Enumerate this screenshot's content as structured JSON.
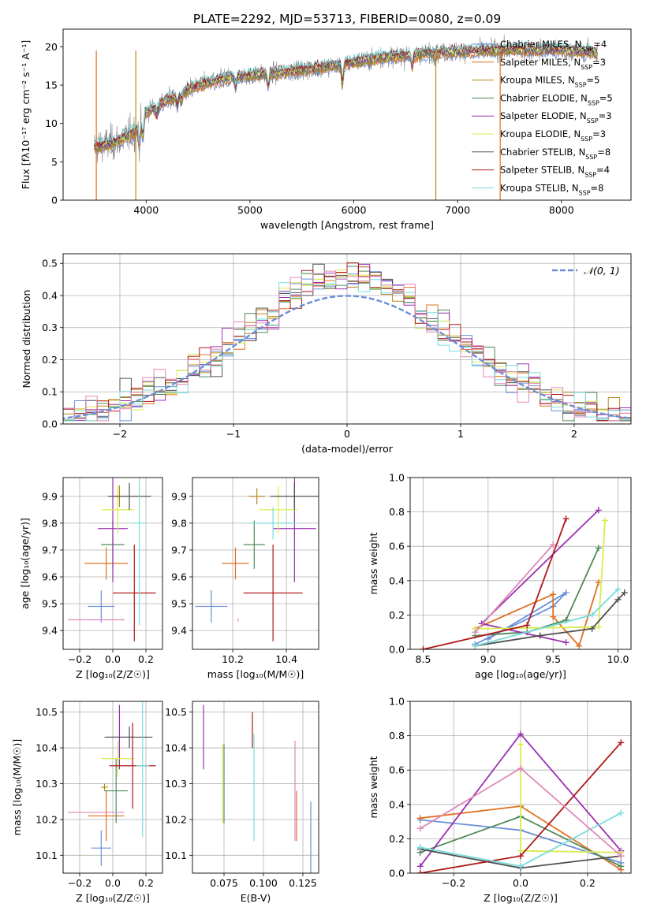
{
  "figure_title": "PLATE=2292, MJD=53713, FIBERID=0080, z=0.09",
  "colors": {
    "chabrier_miles": "#6a8fd8",
    "salpeter_miles": "#e07020",
    "kroupa_miles": "#b48a1e",
    "chabrier_elodie": "#4e8a5a",
    "salpeter_elodie": "#9a30b0",
    "kroupa_elodie": "#d8ec50",
    "chabrier_stelib": "#505050",
    "salpeter_stelib": "#b01818",
    "kroupa_stelib": "#78dcdc",
    "pink": "#e088b8",
    "normal_line": "#6a8fd8",
    "spectrum": "#808080"
  },
  "chart_data": [
    {
      "type": "line",
      "id": "spectrum",
      "xlabel": "wavelength [Angstrom, rest frame]",
      "ylabel": "Flux [fλ10⁻¹⁷ erg cm⁻² s⁻¹ A⁻¹]",
      "xlim": [
        3200,
        8670
      ],
      "ylim": [
        0,
        22.3
      ],
      "xticks": [
        4000,
        5000,
        6000,
        7000,
        8000
      ],
      "yticks": [
        0,
        5,
        10,
        15,
        20
      ],
      "legend_position": "top-right",
      "legend": [
        {
          "name": "Chabrier MILES, N_SSP=4",
          "base": "Chabrier MILES, N",
          "sub": "SSP",
          "tail": "=4",
          "color": "#6a8fd8"
        },
        {
          "name": "Salpeter MILES, N_SSP=3",
          "base": "Salpeter MILES, N",
          "sub": "SSP",
          "tail": "=3",
          "color": "#e07020"
        },
        {
          "name": "Kroupa MILES, N_SSP=5",
          "base": "Kroupa MILES, N",
          "sub": "SSP",
          "tail": "=5",
          "color": "#b48a1e"
        },
        {
          "name": "Chabrier ELODIE, N_SSP=5",
          "base": "Chabrier ELODIE, N",
          "sub": "SSP",
          "tail": "=5",
          "color": "#4e8a5a"
        },
        {
          "name": "Salpeter ELODIE, N_SSP=3",
          "base": "Salpeter ELODIE, N",
          "sub": "SSP",
          "tail": "=3",
          "color": "#9a30b0"
        },
        {
          "name": "Kroupa ELODIE, N_SSP=3",
          "base": "Kroupa ELODIE, N",
          "sub": "SSP",
          "tail": "=3",
          "color": "#d8ec50"
        },
        {
          "name": "Chabrier STELIB, N_SSP=8",
          "base": "Chabrier STELIB, N",
          "sub": "SSP",
          "tail": "=8",
          "color": "#505050"
        },
        {
          "name": "Salpeter STELIB, N_SSP=4",
          "base": "Salpeter STELIB, N",
          "sub": "SSP",
          "tail": "=4",
          "color": "#b01818"
        },
        {
          "name": "Kroupa STELIB, N_SSP=8",
          "base": "Kroupa STELIB, N",
          "sub": "SSP",
          "tail": "=8",
          "color": "#78dcdc"
        }
      ],
      "continuum_knots": [
        [
          3500,
          7.0
        ],
        [
          3700,
          7.5
        ],
        [
          3900,
          9.0
        ],
        [
          4000,
          11.5
        ],
        [
          4200,
          13.0
        ],
        [
          4500,
          15.0
        ],
        [
          4800,
          16.0
        ],
        [
          5200,
          16.5
        ],
        [
          5800,
          17.5
        ],
        [
          6200,
          18.5
        ],
        [
          6600,
          19.0
        ],
        [
          7000,
          19.4
        ],
        [
          7500,
          19.6
        ],
        [
          8000,
          19.6
        ],
        [
          8400,
          19.2
        ]
      ],
      "absorption_lines": [
        [
          3934,
          2.5
        ],
        [
          3968,
          2.5
        ],
        [
          4102,
          1.2
        ],
        [
          4300,
          1.5
        ],
        [
          4340,
          1.2
        ],
        [
          4861,
          1.2
        ],
        [
          5175,
          1.5
        ],
        [
          5890,
          2.5
        ],
        [
          6563,
          1.5
        ]
      ],
      "vertical_spikes": [
        {
          "x": 3520,
          "color": "#e07020"
        },
        {
          "x": 3900,
          "color": "#b48a1e"
        },
        {
          "x": 6790,
          "color": "#b48a1e"
        },
        {
          "x": 7410,
          "color": "#e07020"
        }
      ]
    },
    {
      "type": "histogram",
      "id": "residuals",
      "xlabel": "(data-model)/error",
      "ylabel": "Normed distribution",
      "xlim": [
        -2.5,
        2.5
      ],
      "ylim": [
        0,
        0.53
      ],
      "xticks": [
        -2,
        -1,
        0,
        1,
        2
      ],
      "yticks": [
        0.0,
        0.1,
        0.2,
        0.3,
        0.4,
        0.5
      ],
      "bin_width": 0.1,
      "curve_label": "𝒩(0, 1)",
      "legend_position": "top-right"
    },
    {
      "type": "scatter",
      "id": "age_vs_Z",
      "xlabel": "Z [log₁₀(Z/Z☉)]",
      "ylabel": "age  [log₁₀(age/yr)]",
      "xlim": [
        -0.3,
        0.3
      ],
      "ylim": [
        9.33,
        9.97
      ],
      "xticks": [
        -0.2,
        0.0,
        0.2
      ],
      "yticks": [
        9.4,
        9.5,
        9.6,
        9.7,
        9.8,
        9.9
      ],
      "points": [
        {
          "x": -0.07,
          "y": 9.49,
          "xerr": 0.08,
          "yerr": 0.06,
          "color": "#6a8fd8"
        },
        {
          "x": -0.04,
          "y": 9.65,
          "xerr": 0.13,
          "yerr": 0.06,
          "color": "#e07020"
        },
        {
          "x": 0.04,
          "y": 9.9,
          "xerr": 0.03,
          "yerr": 0.04,
          "color": "#b48a1e"
        },
        {
          "x": 0.0,
          "y": 9.72,
          "xerr": 0.07,
          "yerr": 0.09,
          "color": "#4e8a5a"
        },
        {
          "x": 0.0,
          "y": 9.78,
          "xerr": 0.09,
          "yerr": 0.2,
          "color": "#9a30b0"
        },
        {
          "x": 0.03,
          "y": 9.85,
          "xerr": 0.1,
          "yerr": 0.09,
          "color": "#d8ec50"
        },
        {
          "x": 0.1,
          "y": 9.9,
          "xerr": 0.13,
          "yerr": 0.05,
          "color": "#505050"
        },
        {
          "x": 0.13,
          "y": 9.54,
          "xerr": 0.13,
          "yerr": 0.18,
          "color": "#b01818"
        },
        {
          "x": 0.16,
          "y": 9.8,
          "xerr": 0.04,
          "yerr": 0.38,
          "color": "#78dcdc"
        },
        {
          "x": -0.1,
          "y": 9.44,
          "xerr": 0.17,
          "yerr": 0.0,
          "color": "#e088b8"
        }
      ]
    },
    {
      "type": "scatter",
      "id": "age_vs_mass",
      "xlabel": "mass [log₁₀(M/M☉)]",
      "ylabel": "",
      "xlim": [
        10.05,
        10.52
      ],
      "ylim": [
        9.33,
        9.97
      ],
      "xticks": [
        10.2,
        10.4
      ],
      "yticks": [
        9.4,
        9.5,
        9.6,
        9.7,
        9.8,
        9.9
      ],
      "points": [
        {
          "x": 10.12,
          "y": 9.49,
          "xerr": 0.06,
          "yerr": 0.06,
          "color": "#6a8fd8"
        },
        {
          "x": 10.21,
          "y": 9.65,
          "xerr": 0.05,
          "yerr": 0.06,
          "color": "#e07020"
        },
        {
          "x": 10.29,
          "y": 9.9,
          "xerr": 0.03,
          "yerr": 0.03,
          "color": "#b48a1e"
        },
        {
          "x": 10.28,
          "y": 9.72,
          "xerr": 0.04,
          "yerr": 0.09,
          "color": "#4e8a5a"
        },
        {
          "x": 10.43,
          "y": 9.78,
          "xerr": 0.08,
          "yerr": 0.2,
          "color": "#9a30b0"
        },
        {
          "x": 10.37,
          "y": 9.85,
          "xerr": 0.07,
          "yerr": 0.09,
          "color": "#d8ec50"
        },
        {
          "x": 10.43,
          "y": 9.9,
          "xerr": 0.09,
          "yerr": 0.05,
          "color": "#505050"
        },
        {
          "x": 10.35,
          "y": 9.54,
          "xerr": 0.11,
          "yerr": 0.18,
          "color": "#b01818"
        },
        {
          "x": 10.35,
          "y": 9.8,
          "xerr": 0.09,
          "yerr": 0.06,
          "color": "#78dcdc"
        },
        {
          "x": 10.22,
          "y": 9.44,
          "xerr": 0.0,
          "yerr": 0.0,
          "color": "#e088b8"
        },
        {
          "x": 10.22,
          "y": 9.44,
          "xerr": 0.0,
          "yerr": 0.0,
          "color": "#e088b8"
        }
      ]
    },
    {
      "type": "line",
      "id": "massweight_vs_age",
      "xlabel": "age  [log₁₀(age/yr)]",
      "ylabel": "mass weight",
      "xlim": [
        8.4,
        10.1
      ],
      "ylim": [
        0,
        1
      ],
      "xticks": [
        8.5,
        9.0,
        9.5,
        10.0
      ],
      "yticks": [
        0.0,
        0.2,
        0.4,
        0.6,
        0.8,
        1.0
      ],
      "series": [
        {
          "color": "#6a8fd8",
          "points": [
            [
              8.9,
              0.03
            ],
            [
              9.5,
              0.25
            ],
            [
              9.6,
              0.33
            ],
            [
              9.0,
              0.06
            ]
          ]
        },
        {
          "color": "#e07020",
          "points": [
            [
              8.9,
              0.12
            ],
            [
              9.5,
              0.32
            ],
            [
              9.5,
              0.19
            ],
            [
              9.7,
              0.02
            ],
            [
              9.85,
              0.39
            ]
          ]
        },
        {
          "color": "#4e8a5a",
          "points": [
            [
              8.9,
              0.08
            ],
            [
              9.3,
              0.1
            ],
            [
              9.6,
              0.17
            ],
            [
              9.85,
              0.59
            ]
          ]
        },
        {
          "color": "#9a30b0",
          "points": [
            [
              9.6,
              0.04
            ],
            [
              8.95,
              0.15
            ],
            [
              9.85,
              0.81
            ]
          ]
        },
        {
          "color": "#d8ec50",
          "points": [
            [
              8.9,
              0.12
            ],
            [
              9.85,
              0.13
            ],
            [
              9.9,
              0.75
            ]
          ]
        },
        {
          "color": "#505050",
          "points": [
            [
              8.9,
              0.02
            ],
            [
              9.4,
              0.08
            ],
            [
              9.8,
              0.12
            ],
            [
              10.0,
              0.29
            ],
            [
              10.05,
              0.33
            ]
          ]
        },
        {
          "color": "#b01818",
          "points": [
            [
              8.5,
              0.0
            ],
            [
              9.3,
              0.14
            ],
            [
              9.6,
              0.76
            ]
          ]
        },
        {
          "color": "#78dcdc",
          "points": [
            [
              8.9,
              0.02
            ],
            [
              9.8,
              0.2
            ],
            [
              10.0,
              0.35
            ]
          ]
        },
        {
          "color": "#e088b8",
          "points": [
            [
              8.9,
              0.1
            ],
            [
              9.5,
              0.61
            ]
          ]
        }
      ]
    },
    {
      "type": "scatter",
      "id": "mass_vs_Z",
      "xlabel": "Z [log₁₀(Z/Z☉)]",
      "ylabel": "mass [log₁₀(M/M☉)]",
      "xlim": [
        -0.3,
        0.3
      ],
      "ylim": [
        10.05,
        10.53
      ],
      "xticks": [
        -0.2,
        0.0,
        0.2
      ],
      "yticks": [
        10.1,
        10.2,
        10.3,
        10.4,
        10.5
      ],
      "points": [
        {
          "x": -0.07,
          "y": 10.12,
          "xerr": 0.06,
          "yerr": 0.05,
          "color": "#6a8fd8"
        },
        {
          "x": -0.04,
          "y": 10.21,
          "xerr": 0.11,
          "yerr": 0.07,
          "color": "#e07020"
        },
        {
          "x": -0.05,
          "y": 10.29,
          "xerr": 0.02,
          "yerr": 0.01,
          "color": "#b48a1e"
        },
        {
          "x": 0.02,
          "y": 10.28,
          "xerr": 0.07,
          "yerr": 0.09,
          "color": "#4e8a5a"
        },
        {
          "x": 0.04,
          "y": 10.43,
          "xerr": 0.09,
          "yerr": 0.09,
          "color": "#9a30b0"
        },
        {
          "x": 0.03,
          "y": 10.37,
          "xerr": 0.1,
          "yerr": 0.05,
          "color": "#d8ec50"
        },
        {
          "x": 0.1,
          "y": 10.43,
          "xerr": 0.14,
          "yerr": 0.03,
          "color": "#505050"
        },
        {
          "x": 0.12,
          "y": 10.35,
          "xerr": 0.14,
          "yerr": 0.12,
          "color": "#b01818"
        },
        {
          "x": 0.18,
          "y": 10.35,
          "xerr": 0.04,
          "yerr": 0.2,
          "color": "#78dcdc"
        },
        {
          "x": -0.1,
          "y": 10.22,
          "xerr": 0.17,
          "yerr": 0.0,
          "color": "#e088b8"
        }
      ]
    },
    {
      "type": "scatter",
      "id": "mass_vs_EBV",
      "xlabel": "E(B-V)",
      "ylabel": "",
      "xlim": [
        0.055,
        0.135
      ],
      "ylim": [
        10.05,
        10.53
      ],
      "xticks": [
        0.075,
        0.1,
        0.125
      ],
      "tick_labels": [
        "0.075",
        "0.100",
        "0.125"
      ],
      "yticks": [
        10.1,
        10.2,
        10.3,
        10.4,
        10.5
      ],
      "points": [
        {
          "x": 0.062,
          "y": 10.43,
          "yerr": 0.09,
          "color": "#9a30b0"
        },
        {
          "x": 0.074,
          "y": 10.3,
          "yerr": 0.11,
          "color": "#d8ec50"
        },
        {
          "x": 0.075,
          "y": 10.3,
          "yerr": 0.11,
          "color": "#4e8a5a"
        },
        {
          "x": 0.093,
          "y": 10.45,
          "yerr": 0.05,
          "color": "#b01818"
        },
        {
          "x": 0.094,
          "y": 10.29,
          "yerr": 0.15,
          "color": "#78dcdc"
        },
        {
          "x": 0.12,
          "y": 10.28,
          "yerr": 0.14,
          "color": "#e088b8"
        },
        {
          "x": 0.121,
          "y": 10.21,
          "yerr": 0.07,
          "color": "#e07020"
        },
        {
          "x": 0.13,
          "y": 10.15,
          "yerr": 0.1,
          "color": "#6a8fd8"
        }
      ]
    },
    {
      "type": "line",
      "id": "massweight_vs_Z",
      "xlabel": "Z [log₁₀(Z/Z☉)]",
      "ylabel": "mass weight",
      "xlim": [
        -0.33,
        0.33
      ],
      "ylim": [
        0,
        1
      ],
      "xticks": [
        -0.2,
        0.0,
        0.2
      ],
      "yticks": [
        0.0,
        0.2,
        0.4,
        0.6,
        0.8,
        1.0
      ],
      "series": [
        {
          "color": "#6a8fd8",
          "points": [
            [
              -0.3,
              0.31
            ],
            [
              0.0,
              0.25
            ],
            [
              0.3,
              0.06
            ]
          ]
        },
        {
          "color": "#e07020",
          "points": [
            [
              -0.3,
              0.32
            ],
            [
              0.0,
              0.39
            ],
            [
              0.3,
              0.02
            ]
          ]
        },
        {
          "color": "#4e8a5a",
          "points": [
            [
              -0.3,
              0.12
            ],
            [
              0.0,
              0.33
            ],
            [
              0.3,
              0.04
            ]
          ]
        },
        {
          "color": "#9a30b0",
          "points": [
            [
              -0.3,
              0.04
            ],
            [
              0.0,
              0.81
            ],
            [
              0.3,
              0.13
            ]
          ]
        },
        {
          "color": "#d8ec50",
          "points": [
            [
              0.0,
              0.75
            ],
            [
              0.0,
              0.13
            ],
            [
              0.3,
              0.12
            ]
          ]
        },
        {
          "color": "#505050",
          "points": [
            [
              -0.3,
              0.14
            ],
            [
              0.0,
              0.03
            ],
            [
              0.3,
              0.1
            ]
          ]
        },
        {
          "color": "#b01818",
          "points": [
            [
              -0.3,
              0.0
            ],
            [
              0.0,
              0.1
            ],
            [
              0.3,
              0.76
            ]
          ]
        },
        {
          "color": "#78dcdc",
          "points": [
            [
              -0.3,
              0.15
            ],
            [
              0.0,
              0.04
            ],
            [
              0.3,
              0.35
            ]
          ]
        },
        {
          "color": "#e088b8",
          "points": [
            [
              -0.3,
              0.26
            ],
            [
              0.0,
              0.61
            ],
            [
              0.3,
              0.1
            ]
          ]
        }
      ]
    }
  ]
}
